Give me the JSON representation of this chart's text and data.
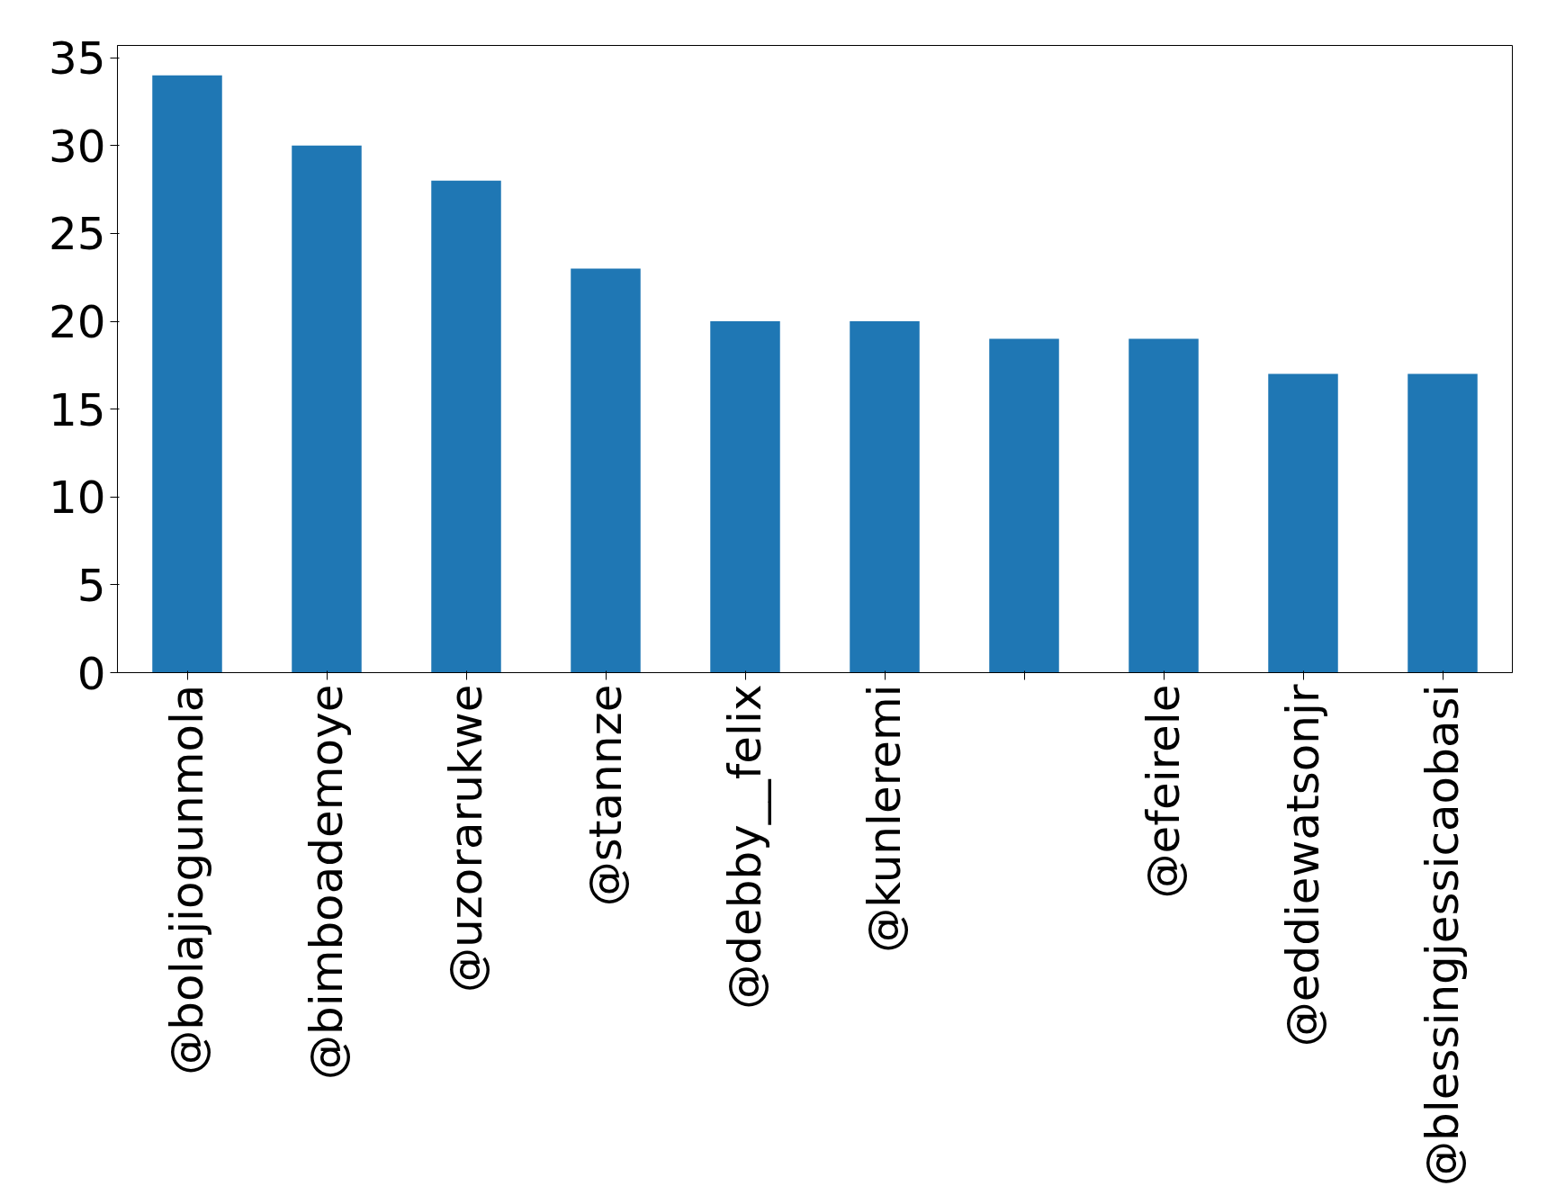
{
  "chart_data": {
    "type": "bar",
    "categories": [
      "@bolajiogunmola",
      "@bimboademoye",
      "@uzorarukwe",
      "@stannze",
      "@debby__felix",
      "@kunleremi",
      null,
      "@efeirele",
      "@eddiewatsonjr",
      "@blessingjessicaobasi"
    ],
    "values": [
      34,
      30,
      28,
      23,
      20,
      20,
      19,
      19,
      17,
      17
    ],
    "color": "#1f77b4",
    "ylim": [
      0,
      35.7
    ],
    "yticks": [
      0,
      5,
      10,
      15,
      20,
      25,
      30,
      35
    ],
    "grid": false
  }
}
